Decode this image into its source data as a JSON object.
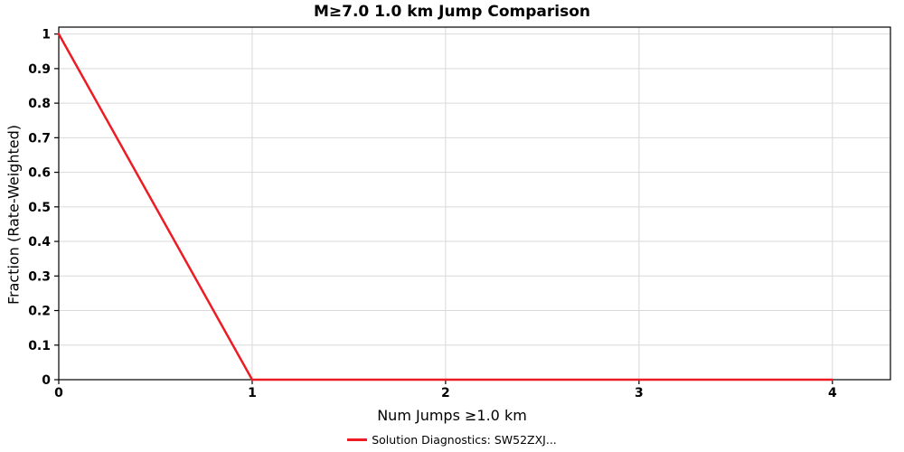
{
  "title": "M≥7.0 1.0 km Jump Comparison",
  "x_axis_label": "Num Jumps ≥1.0 km",
  "y_axis_label": "Fraction (Rate-Weighted)",
  "legend": {
    "label": "Solution Diagnostics: SW52ZXJ...",
    "marker_color": "#ed1c24"
  },
  "colors": {
    "line": "#ed1c24",
    "grid": "#d9d9d9",
    "axis_border": "#000000",
    "tick_text": "#000000",
    "background": "#ffffff"
  },
  "chart_data": {
    "type": "line",
    "title": "M≥7.0 1.0 km Jump Comparison",
    "xlabel": "Num Jumps ≥1.0 km",
    "ylabel": "Fraction (Rate-Weighted)",
    "xlim": [
      0,
      4.3
    ],
    "ylim": [
      0,
      1.02
    ],
    "grid": true,
    "legend_position": "bottom-center",
    "xticks": [
      0,
      1,
      2,
      3,
      4
    ],
    "xtick_labels": [
      "0",
      "1",
      "2",
      "3",
      "4"
    ],
    "yticks": [
      0,
      0.1,
      0.2,
      0.3,
      0.4,
      0.5,
      0.6,
      0.7,
      0.8,
      0.9,
      1
    ],
    "ytick_labels": [
      "0",
      "0.1",
      "0.2",
      "0.3",
      "0.4",
      "0.5",
      "0.6",
      "0.7",
      "0.8",
      "0.9",
      "1"
    ],
    "series": [
      {
        "name": "Solution Diagnostics: SW52ZXJ...",
        "color": "#ed1c24",
        "line_width": 2.5,
        "x": [
          0,
          1,
          2,
          3,
          4
        ],
        "y": [
          1,
          0,
          0,
          0,
          0
        ]
      }
    ]
  }
}
